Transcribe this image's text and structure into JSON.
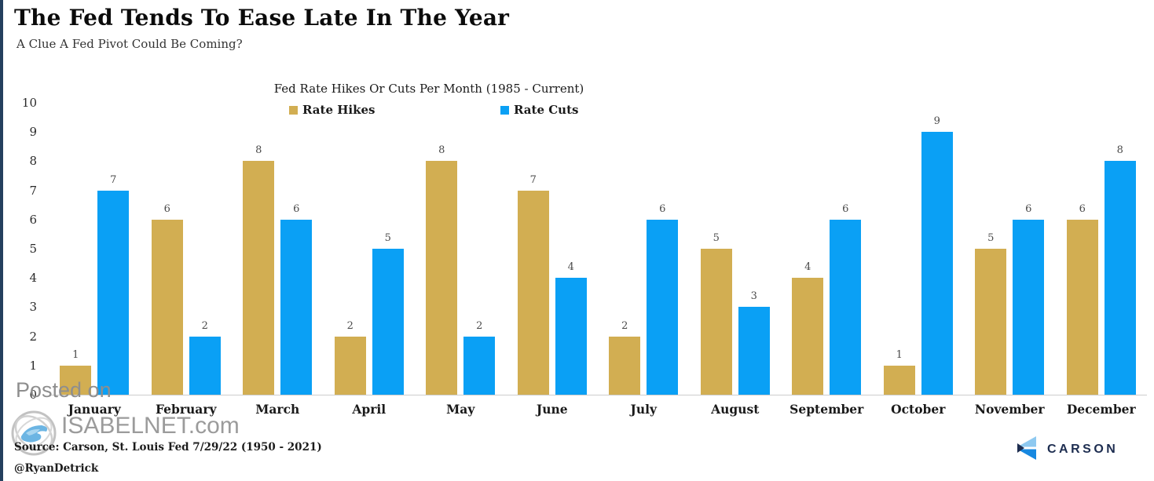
{
  "header": {
    "title": "The Fed Tends To Ease Late In The Year",
    "subtitle": "A Clue A Fed Pivot Could Be Coming?"
  },
  "chart_data": {
    "type": "bar",
    "title": "Fed Rate Hikes Or Cuts Per Month (1985 - Current)",
    "categories": [
      "January",
      "February",
      "March",
      "April",
      "May",
      "June",
      "July",
      "August",
      "September",
      "October",
      "November",
      "December"
    ],
    "series": [
      {
        "name": "Rate Hikes",
        "color": "#d2ae52",
        "values": [
          1,
          6,
          8,
          2,
          8,
          7,
          2,
          5,
          4,
          1,
          5,
          6
        ]
      },
      {
        "name": "Rate Cuts",
        "color": "#0aa0f5",
        "values": [
          7,
          2,
          6,
          5,
          2,
          4,
          6,
          3,
          6,
          9,
          6,
          8
        ]
      }
    ],
    "xlabel": "",
    "ylabel": "",
    "ylim": [
      0,
      10
    ],
    "y_ticks": [
      10,
      9,
      8,
      7,
      6,
      5,
      4,
      3,
      2,
      1,
      0
    ],
    "grid": false,
    "legend_position": "top",
    "data_labels": true
  },
  "watermark": {
    "posted_on": "Posted on",
    "site": "ISABELNET.com"
  },
  "footer": {
    "source": "Source: Carson, St. Louis Fed 7/29/22 (1950 - 2021)",
    "handle": "@RyanDetrick",
    "brand": "CARSON"
  }
}
